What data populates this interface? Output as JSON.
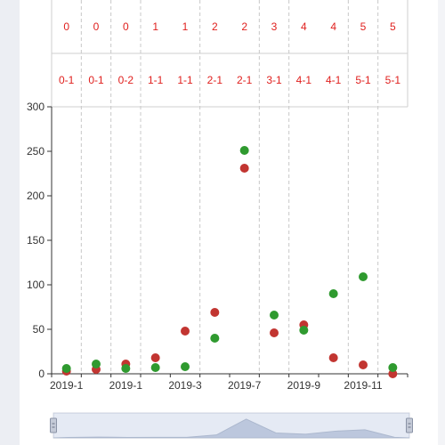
{
  "chart_data": {
    "type": "scatter",
    "header_rows": [
      [
        "0",
        "0",
        "0",
        "1",
        "1",
        "2",
        "2",
        "3",
        "4",
        "4",
        "5",
        "5"
      ],
      [
        "0-1",
        "0-1",
        "0-2",
        "1-1",
        "1-1",
        "2-1",
        "2-1",
        "3-1",
        "4-1",
        "4-1",
        "5-1",
        "5-1"
      ]
    ],
    "x_tick_labels": [
      "2019-1",
      "2019-1",
      "2019-3",
      "2019-7",
      "2019-9",
      "2019-11"
    ],
    "y_ticks": [
      "0",
      "50",
      "100",
      "150",
      "200",
      "250",
      "300"
    ],
    "ylim": [
      0,
      300
    ],
    "series": [
      {
        "color": "#c23531",
        "values": [
          3,
          5,
          11,
          18,
          48,
          69,
          231,
          46,
          55,
          18,
          10,
          0
        ]
      },
      {
        "color": "#2f9a2f",
        "values": [
          6,
          11,
          6,
          7,
          8,
          40,
          251,
          66,
          49,
          90,
          109,
          7
        ]
      }
    ],
    "grid": false
  },
  "zoom_slider": {
    "start_percent": 0,
    "end_percent": 100
  }
}
